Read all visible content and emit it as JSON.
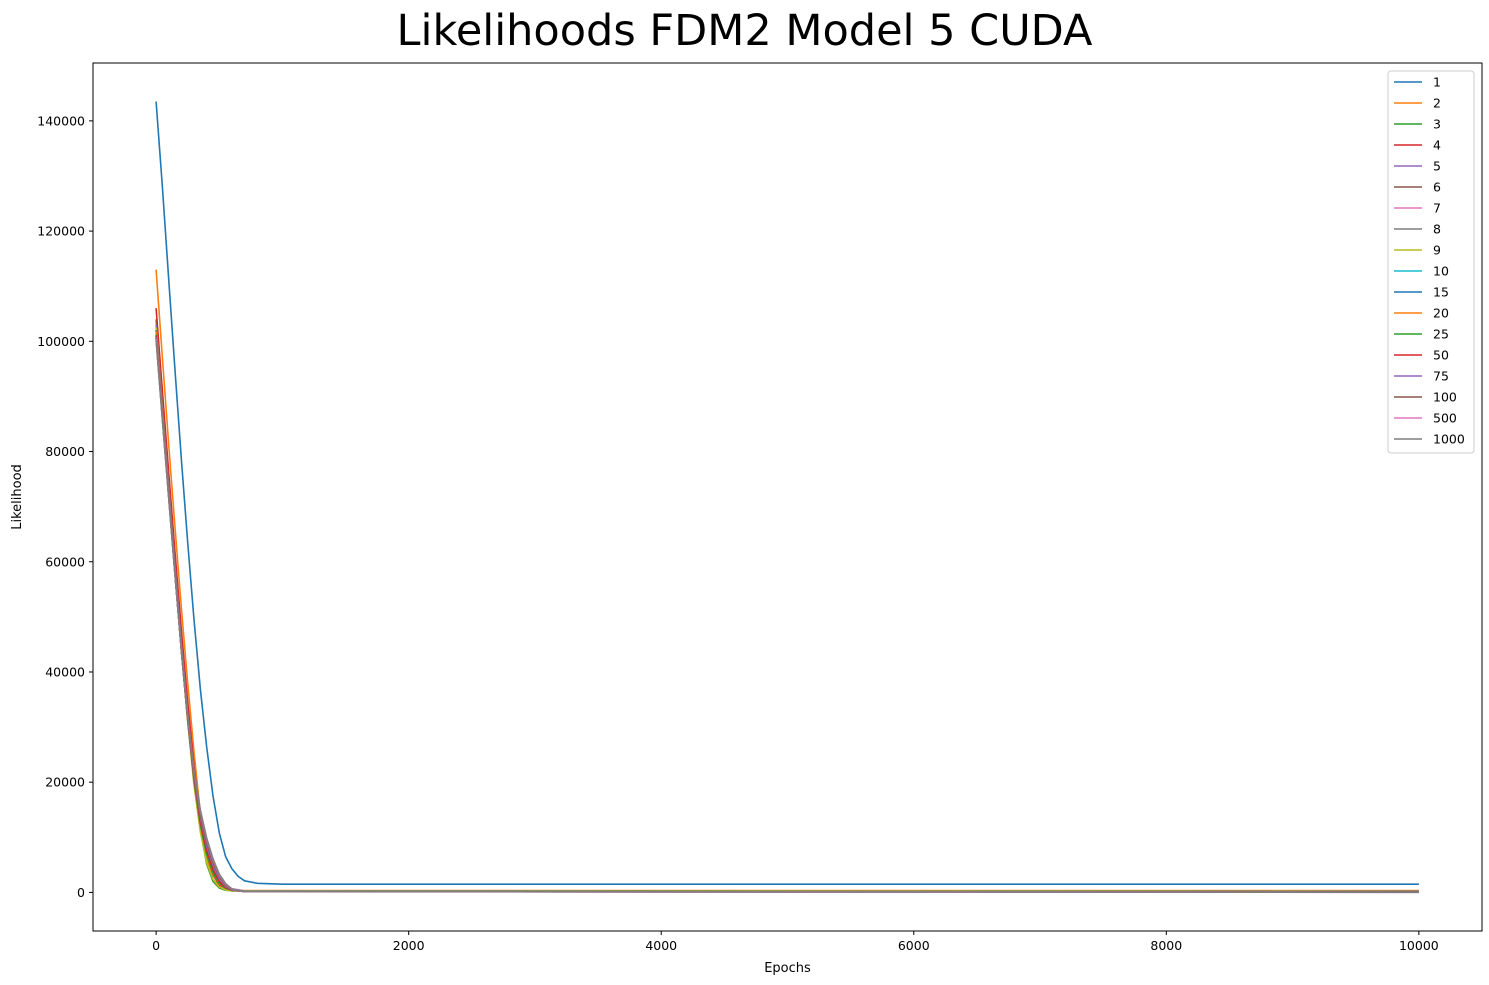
{
  "chart_data": {
    "type": "line",
    "title": "Likelihoods FDM2 Model 5 CUDA",
    "xlabel": "Epochs",
    "ylabel": "Likelihood",
    "xlim": [
      -500,
      10500
    ],
    "ylim": [
      -7000,
      150500
    ],
    "xticks": [
      0,
      2000,
      4000,
      6000,
      8000,
      10000
    ],
    "yticks": [
      0,
      20000,
      40000,
      60000,
      80000,
      100000,
      120000,
      140000
    ],
    "grid": false,
    "legend_position": "top-right",
    "series": [
      {
        "name": "1",
        "color": "#1f77b4",
        "points": [
          [
            0,
            143500
          ],
          [
            50,
            128000
          ],
          [
            100,
            111000
          ],
          [
            150,
            94500
          ],
          [
            200,
            78500
          ],
          [
            250,
            63500
          ],
          [
            300,
            49500
          ],
          [
            350,
            37000
          ],
          [
            400,
            26500
          ],
          [
            450,
            17500
          ],
          [
            500,
            10800
          ],
          [
            550,
            6500
          ],
          [
            600,
            4300
          ],
          [
            650,
            2900
          ],
          [
            700,
            2100
          ],
          [
            800,
            1650
          ],
          [
            1000,
            1500
          ],
          [
            10000,
            1500
          ]
        ]
      },
      {
        "name": "2",
        "color": "#ff7f0e",
        "points": [
          [
            0,
            113000
          ],
          [
            50,
            97000
          ],
          [
            100,
            81000
          ],
          [
            150,
            66000
          ],
          [
            200,
            51500
          ],
          [
            250,
            38000
          ],
          [
            300,
            25500
          ],
          [
            350,
            14500
          ],
          [
            400,
            6500
          ],
          [
            450,
            2200
          ],
          [
            500,
            800
          ],
          [
            550,
            450
          ],
          [
            600,
            380
          ],
          [
            700,
            350
          ],
          [
            10000,
            350
          ]
        ]
      },
      {
        "name": "3",
        "color": "#2ca02c",
        "points": [
          [
            0,
            104000
          ],
          [
            50,
            89000
          ],
          [
            100,
            74000
          ],
          [
            150,
            59500
          ],
          [
            200,
            45500
          ],
          [
            250,
            32500
          ],
          [
            300,
            21000
          ],
          [
            350,
            11500
          ],
          [
            400,
            5200
          ],
          [
            450,
            2000
          ],
          [
            500,
            800
          ],
          [
            550,
            400
          ],
          [
            600,
            300
          ],
          [
            10000,
            280
          ]
        ]
      },
      {
        "name": "4",
        "color": "#d62728",
        "points": [
          [
            0,
            106000
          ],
          [
            50,
            91000
          ],
          [
            100,
            76000
          ],
          [
            150,
            61500
          ],
          [
            200,
            47500
          ],
          [
            250,
            34500
          ],
          [
            300,
            23000
          ],
          [
            350,
            13500
          ],
          [
            400,
            7000
          ],
          [
            450,
            3200
          ],
          [
            500,
            1300
          ],
          [
            550,
            600
          ],
          [
            600,
            380
          ],
          [
            700,
            300
          ],
          [
            10000,
            280
          ]
        ]
      },
      {
        "name": "5",
        "color": "#9467bd",
        "points": [
          [
            0,
            103000
          ],
          [
            50,
            88000
          ],
          [
            100,
            73500
          ],
          [
            150,
            59000
          ],
          [
            200,
            45000
          ],
          [
            250,
            32500
          ],
          [
            300,
            21500
          ],
          [
            350,
            13000
          ],
          [
            400,
            7500
          ],
          [
            450,
            4000
          ],
          [
            500,
            1900
          ],
          [
            550,
            900
          ],
          [
            600,
            450
          ],
          [
            700,
            250
          ],
          [
            10000,
            220
          ]
        ]
      },
      {
        "name": "6",
        "color": "#8c564b",
        "points": [
          [
            0,
            102000
          ],
          [
            50,
            87000
          ],
          [
            100,
            72500
          ],
          [
            150,
            58000
          ],
          [
            200,
            44000
          ],
          [
            250,
            31500
          ],
          [
            300,
            20500
          ],
          [
            350,
            12500
          ],
          [
            400,
            7200
          ],
          [
            450,
            3800
          ],
          [
            500,
            1800
          ],
          [
            550,
            850
          ],
          [
            600,
            420
          ],
          [
            700,
            220
          ],
          [
            10000,
            200
          ]
        ]
      },
      {
        "name": "7",
        "color": "#e377c2",
        "points": [
          [
            0,
            101000
          ],
          [
            50,
            86500
          ],
          [
            100,
            72000
          ],
          [
            150,
            58000
          ],
          [
            200,
            44500
          ],
          [
            250,
            32000
          ],
          [
            300,
            21500
          ],
          [
            350,
            14000
          ],
          [
            400,
            9000
          ],
          [
            450,
            5500
          ],
          [
            500,
            3000
          ],
          [
            550,
            1500
          ],
          [
            600,
            700
          ],
          [
            700,
            280
          ],
          [
            10000,
            220
          ]
        ]
      },
      {
        "name": "8",
        "color": "#7f7f7f",
        "points": [
          [
            0,
            100500
          ],
          [
            50,
            86000
          ],
          [
            100,
            71500
          ],
          [
            150,
            57500
          ],
          [
            200,
            44000
          ],
          [
            250,
            31500
          ],
          [
            300,
            21000
          ],
          [
            350,
            13500
          ],
          [
            400,
            8500
          ],
          [
            450,
            5000
          ],
          [
            500,
            2700
          ],
          [
            550,
            1300
          ],
          [
            600,
            600
          ],
          [
            700,
            250
          ],
          [
            10000,
            200
          ]
        ]
      },
      {
        "name": "9",
        "color": "#bcbd22",
        "points": [
          [
            0,
            102500
          ],
          [
            50,
            87500
          ],
          [
            100,
            72500
          ],
          [
            150,
            58000
          ],
          [
            200,
            44000
          ],
          [
            250,
            31000
          ],
          [
            300,
            19500
          ],
          [
            350,
            11000
          ],
          [
            400,
            5500
          ],
          [
            450,
            2400
          ],
          [
            500,
            1000
          ],
          [
            550,
            450
          ],
          [
            600,
            280
          ],
          [
            10000,
            250
          ]
        ]
      },
      {
        "name": "10",
        "color": "#17becf",
        "points": [
          [
            0,
            101500
          ],
          [
            50,
            86800
          ],
          [
            100,
            72200
          ],
          [
            150,
            57800
          ],
          [
            200,
            44000
          ],
          [
            250,
            31500
          ],
          [
            300,
            20500
          ],
          [
            350,
            12500
          ],
          [
            400,
            7000
          ],
          [
            450,
            3600
          ],
          [
            500,
            1700
          ],
          [
            550,
            800
          ],
          [
            600,
            400
          ],
          [
            700,
            230
          ],
          [
            10000,
            210
          ]
        ]
      },
      {
        "name": "15",
        "color": "#1f77b4",
        "points": [
          [
            0,
            102000
          ],
          [
            50,
            87200
          ],
          [
            100,
            72500
          ],
          [
            150,
            58200
          ],
          [
            200,
            44300
          ],
          [
            250,
            31800
          ],
          [
            300,
            21000
          ],
          [
            350,
            13200
          ],
          [
            400,
            7800
          ],
          [
            450,
            4200
          ],
          [
            500,
            2000
          ],
          [
            550,
            900
          ],
          [
            600,
            420
          ],
          [
            700,
            200
          ],
          [
            10000,
            150
          ]
        ]
      },
      {
        "name": "20",
        "color": "#ff7f0e",
        "points": [
          [
            0,
            101800
          ],
          [
            50,
            87000
          ],
          [
            100,
            72300
          ],
          [
            150,
            57900
          ],
          [
            200,
            44000
          ],
          [
            250,
            31300
          ],
          [
            300,
            20300
          ],
          [
            350,
            12200
          ],
          [
            400,
            6800
          ],
          [
            450,
            3400
          ],
          [
            500,
            1600
          ],
          [
            550,
            750
          ],
          [
            600,
            380
          ],
          [
            700,
            200
          ],
          [
            10000,
            150
          ]
        ]
      },
      {
        "name": "25",
        "color": "#2ca02c",
        "points": [
          [
            0,
            101200
          ],
          [
            50,
            86500
          ],
          [
            100,
            71900
          ],
          [
            150,
            57600
          ],
          [
            200,
            43800
          ],
          [
            250,
            31200
          ],
          [
            300,
            20300
          ],
          [
            350,
            12300
          ],
          [
            400,
            6900
          ],
          [
            450,
            3500
          ],
          [
            500,
            1650
          ],
          [
            550,
            760
          ],
          [
            600,
            370
          ],
          [
            700,
            180
          ],
          [
            10000,
            120
          ]
        ]
      },
      {
        "name": "50",
        "color": "#d62728",
        "points": [
          [
            0,
            101000
          ],
          [
            50,
            86300
          ],
          [
            100,
            71800
          ],
          [
            150,
            57500
          ],
          [
            200,
            43800
          ],
          [
            250,
            31300
          ],
          [
            300,
            20700
          ],
          [
            350,
            12900
          ],
          [
            400,
            7600
          ],
          [
            450,
            4100
          ],
          [
            500,
            2000
          ],
          [
            550,
            900
          ],
          [
            600,
            400
          ],
          [
            700,
            150
          ],
          [
            10000,
            80
          ]
        ]
      },
      {
        "name": "75",
        "color": "#9467bd",
        "points": [
          [
            0,
            100800
          ],
          [
            50,
            86200
          ],
          [
            100,
            71700
          ],
          [
            150,
            57500
          ],
          [
            200,
            43900
          ],
          [
            250,
            31600
          ],
          [
            300,
            21200
          ],
          [
            350,
            13700
          ],
          [
            400,
            8500
          ],
          [
            450,
            4900
          ],
          [
            500,
            2500
          ],
          [
            550,
            1100
          ],
          [
            600,
            450
          ],
          [
            700,
            150
          ],
          [
            10000,
            60
          ]
        ]
      },
      {
        "name": "100",
        "color": "#8c564b",
        "points": [
          [
            0,
            100600
          ],
          [
            50,
            86000
          ],
          [
            100,
            71600
          ],
          [
            150,
            57500
          ],
          [
            200,
            44000
          ],
          [
            250,
            31800
          ],
          [
            300,
            21600
          ],
          [
            350,
            14200
          ],
          [
            400,
            9100
          ],
          [
            450,
            5400
          ],
          [
            500,
            2900
          ],
          [
            550,
            1300
          ],
          [
            600,
            500
          ],
          [
            700,
            150
          ],
          [
            10000,
            50
          ]
        ]
      },
      {
        "name": "500",
        "color": "#e377c2",
        "points": [
          [
            0,
            100400
          ],
          [
            50,
            85900
          ],
          [
            100,
            71500
          ],
          [
            150,
            57500
          ],
          [
            200,
            44100
          ],
          [
            250,
            32000
          ],
          [
            300,
            22000
          ],
          [
            350,
            14800
          ],
          [
            400,
            9700
          ],
          [
            450,
            5900
          ],
          [
            500,
            3200
          ],
          [
            550,
            1500
          ],
          [
            600,
            560
          ],
          [
            700,
            140
          ],
          [
            10000,
            30
          ]
        ]
      },
      {
        "name": "1000",
        "color": "#7f7f7f",
        "points": [
          [
            0,
            100200
          ],
          [
            50,
            85700
          ],
          [
            100,
            71400
          ],
          [
            150,
            57400
          ],
          [
            200,
            44000
          ],
          [
            250,
            32000
          ],
          [
            300,
            22100
          ],
          [
            350,
            15000
          ],
          [
            400,
            9900
          ],
          [
            450,
            6100
          ],
          [
            500,
            3300
          ],
          [
            550,
            1600
          ],
          [
            600,
            600
          ],
          [
            700,
            150
          ],
          [
            10000,
            20
          ]
        ]
      }
    ]
  }
}
